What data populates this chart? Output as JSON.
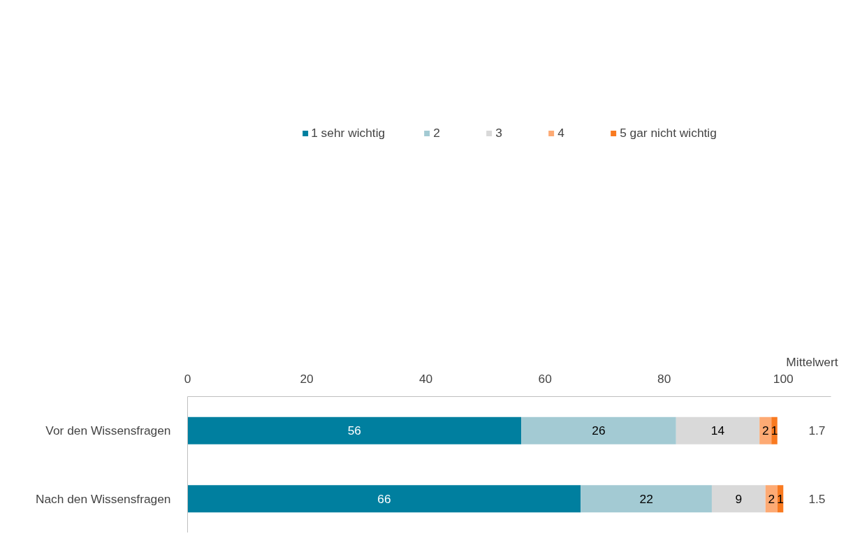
{
  "chart_data": {
    "type": "bar",
    "orientation": "horizontal",
    "stacked": true,
    "data_labels": true,
    "legend": "top",
    "grid": false,
    "categories": [
      "Vor den Wissensfragen",
      "Nach den Wissensfragen"
    ],
    "series": [
      {
        "name": "1 sehr wichtig",
        "color": "#007f9f",
        "values": [
          56,
          66
        ]
      },
      {
        "name": "2",
        "color": "#a3cad3",
        "values": [
          26,
          22
        ]
      },
      {
        "name": "3",
        "color": "#d9d9d9",
        "values": [
          14,
          9
        ]
      },
      {
        "name": "4",
        "color": "#fdaa74",
        "values": [
          2,
          2
        ]
      },
      {
        "name": "5 gar nicht wichtig",
        "color": "#f97a20",
        "values": [
          1,
          1
        ]
      }
    ],
    "xlim": [
      0,
      108
    ],
    "xticks": [
      0,
      20,
      40,
      60,
      80,
      100
    ],
    "annotations": [
      "Mittelwert",
      "1.7",
      "1.5"
    ]
  }
}
